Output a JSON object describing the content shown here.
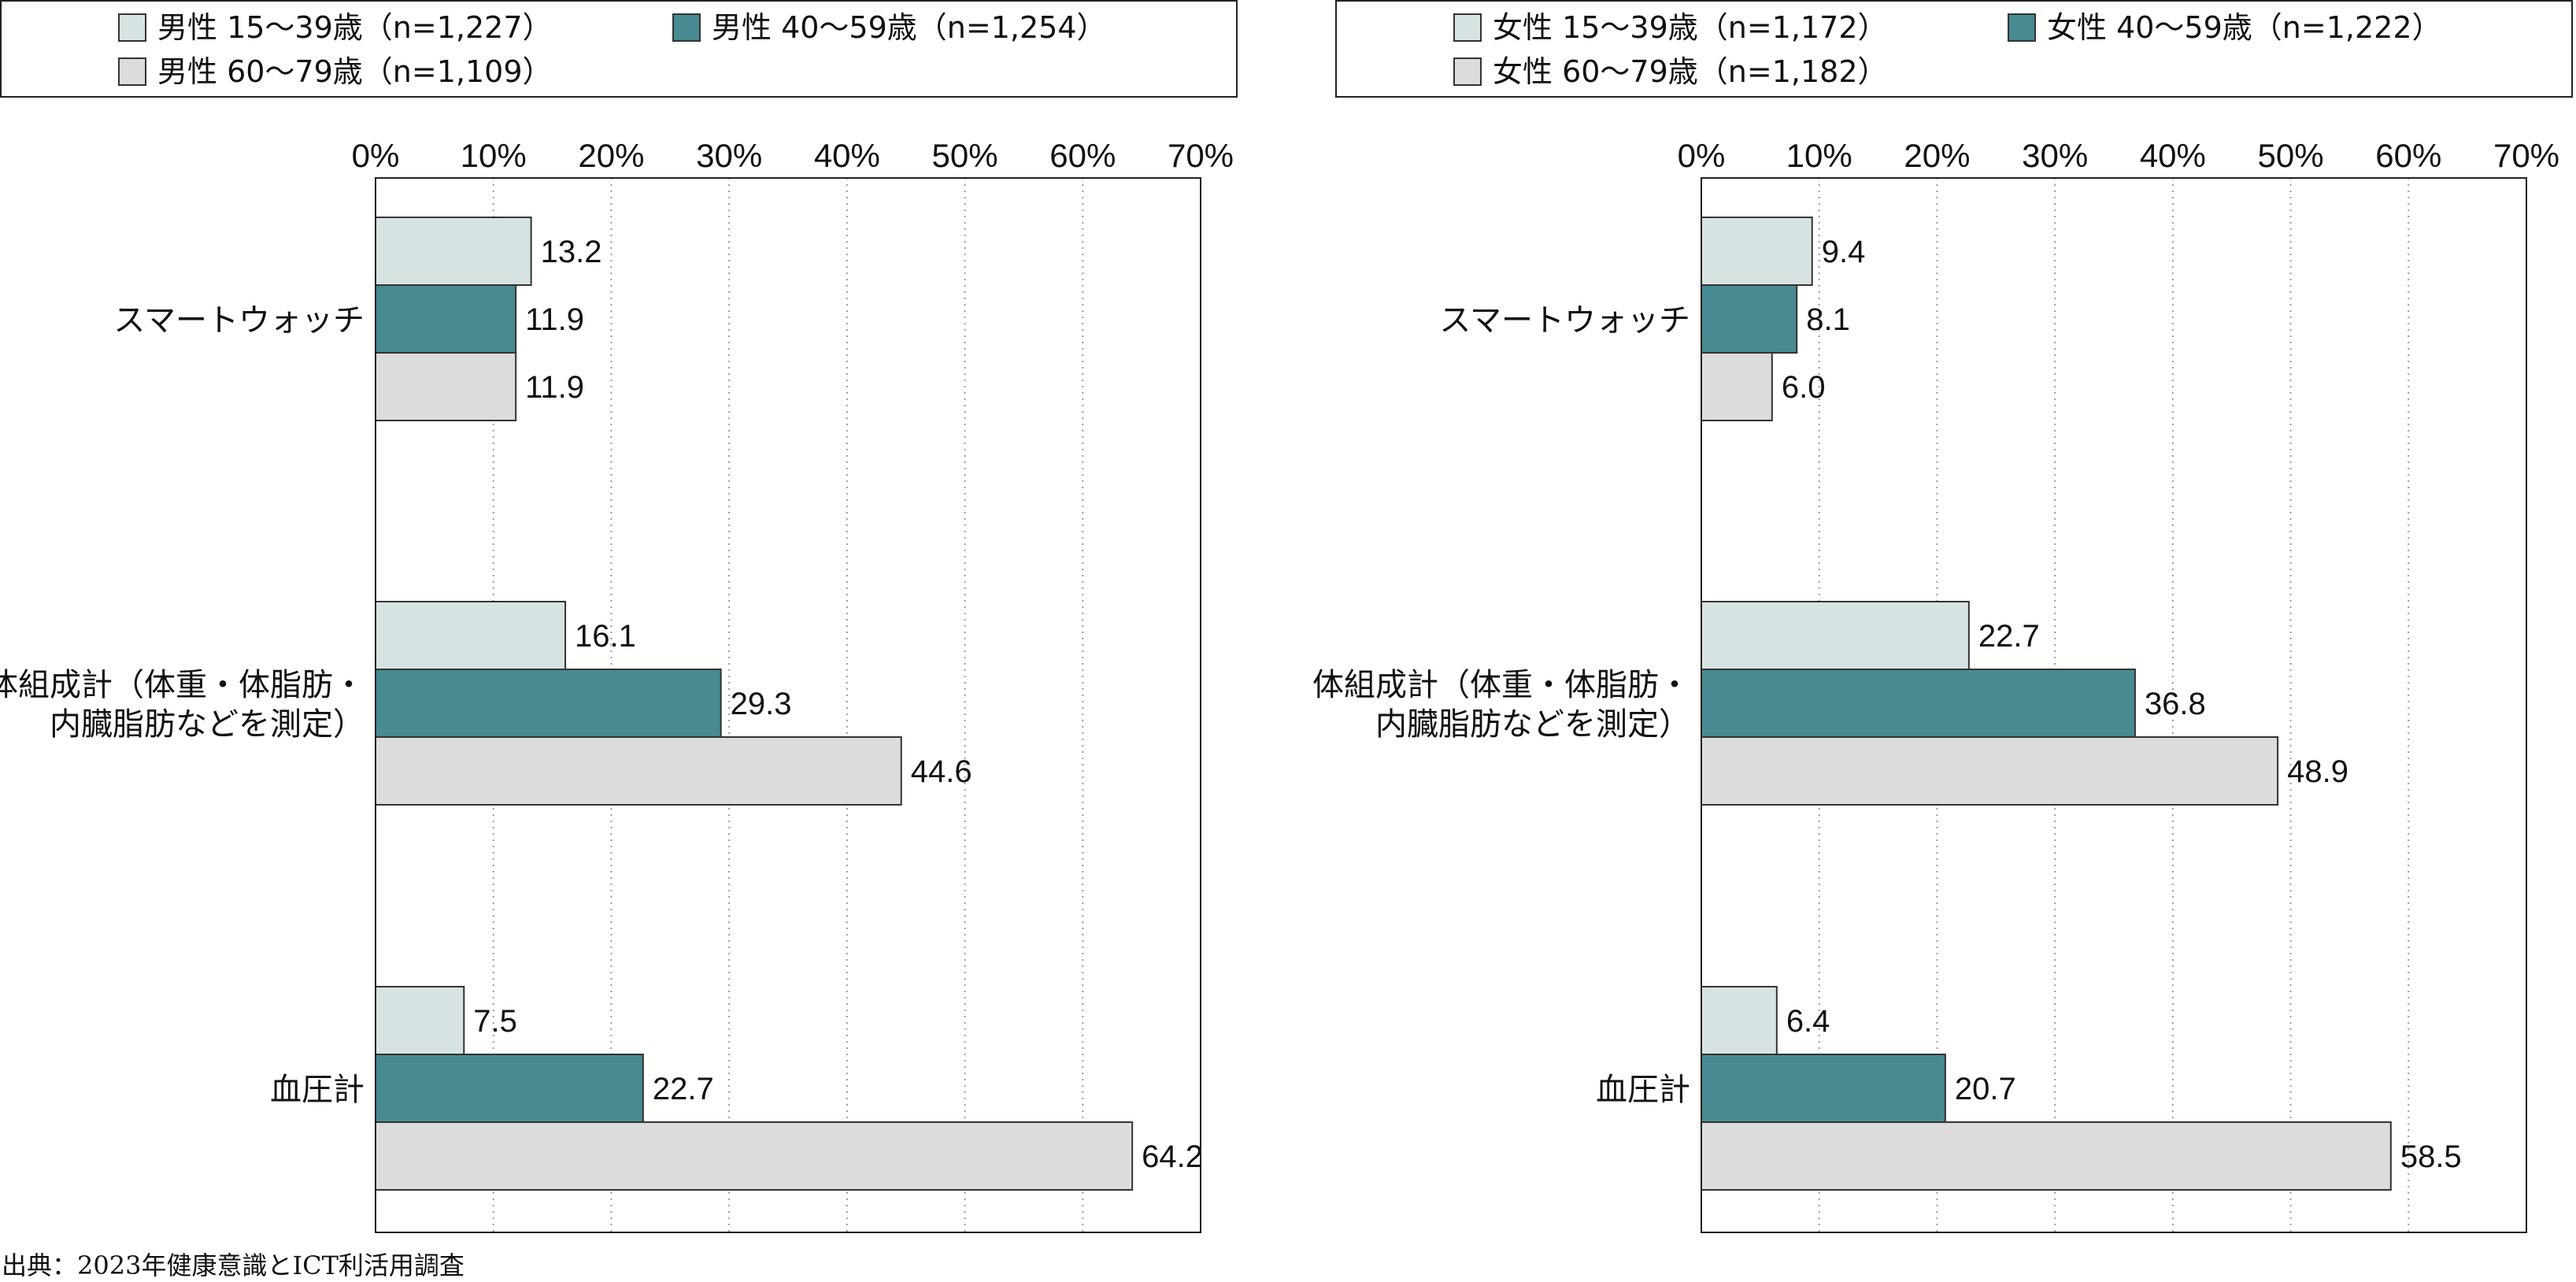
{
  "source": "出典：2023年健康意識とICT利活用調査",
  "chart_data": [
    {
      "type": "bar",
      "orientation": "horizontal",
      "categories": [
        "スマートウォッチ",
        "体組成計（体重・体脂肪・内臓脂肪などを測定）",
        "血圧計"
      ],
      "category_lines": [
        [
          "スマートウォッチ"
        ],
        [
          "体組成計（体重・体脂肪・",
          "内臓脂肪などを測定）"
        ],
        [
          "血圧計"
        ]
      ],
      "series": [
        {
          "name": "男性 15〜39歳（n=1,227）",
          "values": [
            13.2,
            16.1,
            7.5
          ],
          "color": "#d7e3e3"
        },
        {
          "name": "男性 40〜59歳（n=1,254）",
          "values": [
            11.9,
            29.3,
            22.7
          ],
          "color": "#478a91"
        },
        {
          "name": "男性 60〜79歳（n=1,109）",
          "values": [
            11.9,
            44.6,
            64.2
          ],
          "color": "#dcdcdc"
        }
      ],
      "data_labels": [
        [
          "13.2",
          "16.1",
          "7.5"
        ],
        [
          "11.9",
          "29.3",
          "22.7"
        ],
        [
          "11.9",
          "44.6",
          "64.2"
        ]
      ],
      "xlim": [
        0,
        70
      ],
      "x_ticks": [
        0,
        10,
        20,
        30,
        40,
        50,
        60,
        70
      ],
      "x_tick_labels": [
        "0%",
        "10%",
        "20%",
        "30%",
        "40%",
        "50%",
        "60%",
        "70%"
      ],
      "grid": "vertical-dotted",
      "legend_position": "top"
    },
    {
      "type": "bar",
      "orientation": "horizontal",
      "categories": [
        "スマートウォッチ",
        "体組成計（体重・体脂肪・内臓脂肪などを測定）",
        "血圧計"
      ],
      "category_lines": [
        [
          "スマートウォッチ"
        ],
        [
          "体組成計（体重・体脂肪・",
          "内臓脂肪などを測定）"
        ],
        [
          "血圧計"
        ]
      ],
      "series": [
        {
          "name": "女性 15〜39歳（n=1,172）",
          "values": [
            9.4,
            22.7,
            6.4
          ],
          "color": "#d7e3e3"
        },
        {
          "name": "女性 40〜59歳（n=1,222）",
          "values": [
            8.1,
            36.8,
            20.7
          ],
          "color": "#478a91"
        },
        {
          "name": "女性 60〜79歳（n=1,182）",
          "values": [
            6.0,
            48.9,
            58.5
          ],
          "color": "#dcdcdc"
        }
      ],
      "data_labels": [
        [
          "9.4",
          "22.7",
          "6.4"
        ],
        [
          "8.1",
          "36.8",
          "20.7"
        ],
        [
          "6.0",
          "48.9",
          "58.5"
        ]
      ],
      "xlim": [
        0,
        70
      ],
      "x_ticks": [
        0,
        10,
        20,
        30,
        40,
        50,
        60,
        70
      ],
      "x_tick_labels": [
        "0%",
        "10%",
        "20%",
        "30%",
        "40%",
        "50%",
        "60%",
        "70%"
      ],
      "grid": "vertical-dotted",
      "legend_position": "top"
    }
  ]
}
